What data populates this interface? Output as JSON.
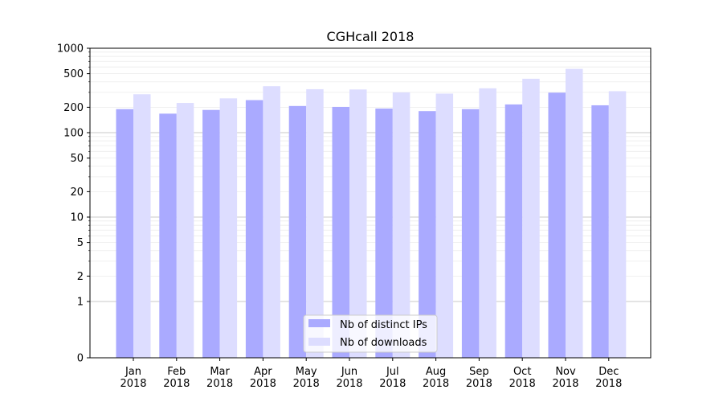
{
  "chart_data": {
    "type": "bar",
    "title": "CGHcall 2018",
    "y_scale": "symlog",
    "ylim": [
      0,
      1000
    ],
    "y_ticks": [
      0,
      1,
      2,
      5,
      10,
      20,
      50,
      100,
      200,
      500,
      1000
    ],
    "categories": [
      "Jan\n2018",
      "Feb\n2018",
      "Mar\n2018",
      "Apr\n2018",
      "May\n2018",
      "Jun\n2018",
      "Jul\n2018",
      "Aug\n2018",
      "Sep\n2018",
      "Oct\n2018",
      "Nov\n2018",
      "Dec\n2018"
    ],
    "series": [
      {
        "name": "Nb of distinct IPs",
        "color": "#aaaaff",
        "values": [
          190,
          168,
          186,
          243,
          207,
          202,
          193,
          180,
          190,
          216,
          298,
          211
        ]
      },
      {
        "name": "Nb of downloads",
        "color": "#ddddff",
        "values": [
          285,
          225,
          255,
          355,
          327,
          325,
          300,
          290,
          335,
          435,
          570,
          310
        ]
      }
    ],
    "grid": true,
    "legend_position": "bottom-center"
  }
}
